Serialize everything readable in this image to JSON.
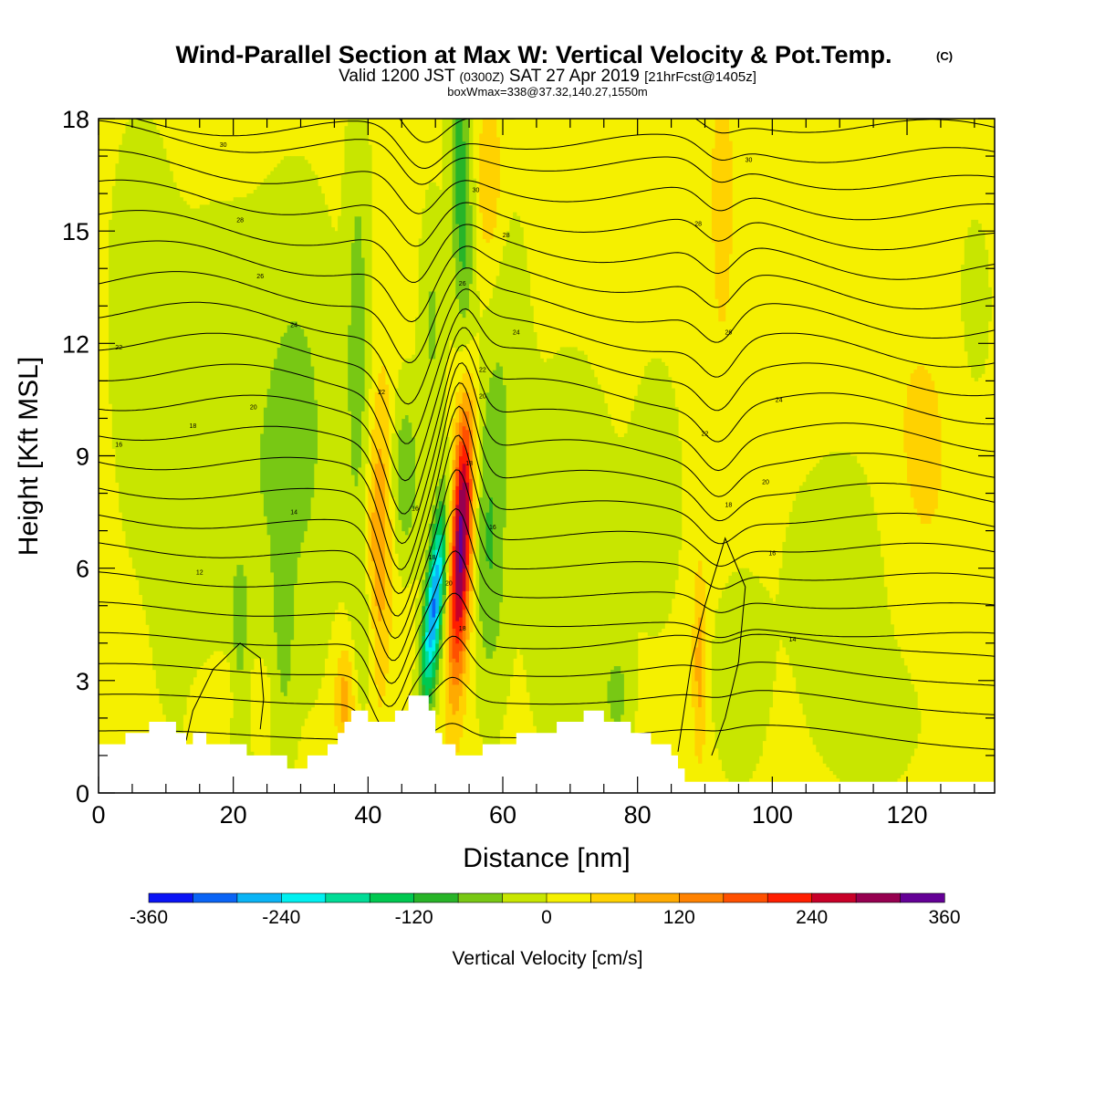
{
  "chart_data": {
    "type": "heatmap",
    "title": "Wind-Parallel Section at Max W: Vertical Velocity & Pot.Temp.",
    "title_mark": "(C)",
    "subtitle_a": "Valid 1200 JST",
    "subtitle_b": "(0300Z)",
    "subtitle_c": "SAT 27 Apr 2019",
    "subtitle_d": "[21hrFcst@1405z]",
    "subtitle2": "boxWmax=338@37.32,140.27,1550m",
    "xlabel": "Distance [nm]",
    "ylabel": "Height [Kft MSL]",
    "xlim": [
      0,
      133
    ],
    "ylim": [
      0,
      18
    ],
    "xticks": [
      {
        "value": 0,
        "label": "0"
      },
      {
        "value": 20,
        "label": "20"
      },
      {
        "value": 40,
        "label": "40"
      },
      {
        "value": 60,
        "label": "60"
      },
      {
        "value": 80,
        "label": "80"
      },
      {
        "value": 100,
        "label": "100"
      },
      {
        "value": 120,
        "label": "120"
      }
    ],
    "yticks": [
      {
        "value": 0,
        "label": "0"
      },
      {
        "value": 3,
        "label": "3"
      },
      {
        "value": 6,
        "label": "6"
      },
      {
        "value": 9,
        "label": "9"
      },
      {
        "value": 12,
        "label": "12"
      },
      {
        "value": 15,
        "label": "15"
      },
      {
        "value": 18,
        "label": "18"
      }
    ],
    "colorbar": {
      "title": "Vertical Velocity [cm/s]",
      "min": -360,
      "max": 360,
      "colors": [
        "#0a14f5",
        "#0a64f5",
        "#0ab4f5",
        "#00f0f0",
        "#00dc96",
        "#00c850",
        "#28b428",
        "#78c814",
        "#c8e600",
        "#f5f000",
        "#ffd200",
        "#ffaa00",
        "#ff8200",
        "#ff5000",
        "#ff1e00",
        "#c80028",
        "#960050",
        "#640096"
      ],
      "ticks": [
        {
          "value": -360,
          "label": "-360"
        },
        {
          "value": -240,
          "label": "-240"
        },
        {
          "value": -120,
          "label": "-120"
        },
        {
          "value": 0,
          "label": "0"
        },
        {
          "value": 120,
          "label": "120"
        },
        {
          "value": 240,
          "label": "240"
        },
        {
          "value": 360,
          "label": "360"
        }
      ]
    },
    "terrain": [
      [
        0,
        1.3
      ],
      [
        4,
        1.3
      ],
      [
        4,
        1.6
      ],
      [
        7.5,
        1.6
      ],
      [
        7.5,
        1.9
      ],
      [
        11.5,
        1.9
      ],
      [
        11.5,
        1.6
      ],
      [
        13,
        1.6
      ],
      [
        13,
        1.3
      ],
      [
        14,
        1.3
      ],
      [
        14,
        1.6
      ],
      [
        16,
        1.6
      ],
      [
        16,
        1.3
      ],
      [
        22,
        1.3
      ],
      [
        22,
        1.0
      ],
      [
        28,
        1.0
      ],
      [
        28,
        0.65
      ],
      [
        31,
        0.65
      ],
      [
        31,
        1.0
      ],
      [
        34,
        1.0
      ],
      [
        34,
        1.3
      ],
      [
        35.5,
        1.3
      ],
      [
        35.5,
        1.6
      ],
      [
        36.5,
        1.6
      ],
      [
        36.5,
        1.9
      ],
      [
        37.5,
        1.9
      ],
      [
        37.5,
        2.2
      ],
      [
        40,
        2.2
      ],
      [
        40,
        1.9
      ],
      [
        44,
        1.9
      ],
      [
        44,
        2.2
      ],
      [
        46,
        2.2
      ],
      [
        46,
        2.6
      ],
      [
        49,
        2.6
      ],
      [
        49,
        2.2
      ],
      [
        50,
        2.2
      ],
      [
        50,
        1.6
      ],
      [
        51,
        1.6
      ],
      [
        51,
        1.3
      ],
      [
        53,
        1.3
      ],
      [
        53,
        1.0
      ],
      [
        57,
        1.0
      ],
      [
        57,
        1.3
      ],
      [
        62,
        1.3
      ],
      [
        62,
        1.6
      ],
      [
        68,
        1.6
      ],
      [
        68,
        1.9
      ],
      [
        72,
        1.9
      ],
      [
        72,
        2.2
      ],
      [
        75,
        2.2
      ],
      [
        75,
        1.9
      ],
      [
        79,
        1.9
      ],
      [
        79,
        1.6
      ],
      [
        82,
        1.6
      ],
      [
        82,
        1.3
      ],
      [
        85,
        1.3
      ],
      [
        85,
        1.0
      ],
      [
        86,
        1.0
      ],
      [
        86,
        0.65
      ],
      [
        87,
        0.65
      ],
      [
        87,
        0.3
      ],
      [
        133,
        0.3
      ],
      [
        133,
        0
      ],
      [
        0,
        0
      ]
    ],
    "theta_labels": [
      {
        "x": 18.5,
        "y": 17.3,
        "text": "30"
      },
      {
        "x": 21,
        "y": 15.3,
        "text": "28"
      },
      {
        "x": 24,
        "y": 13.8,
        "text": "26"
      },
      {
        "x": 29,
        "y": 12.5,
        "text": "24"
      },
      {
        "x": 3,
        "y": 11.9,
        "text": "22"
      },
      {
        "x": 23,
        "y": 10.3,
        "text": "20"
      },
      {
        "x": 14,
        "y": 9.8,
        "text": "18"
      },
      {
        "x": 3,
        "y": 9.3,
        "text": "16"
      },
      {
        "x": 29,
        "y": 7.5,
        "text": "14"
      },
      {
        "x": 15,
        "y": 5.9,
        "text": "12"
      },
      {
        "x": 42,
        "y": 10.7,
        "text": "22"
      },
      {
        "x": 56,
        "y": 16.1,
        "text": "30"
      },
      {
        "x": 60.5,
        "y": 14.9,
        "text": "28"
      },
      {
        "x": 54,
        "y": 13.6,
        "text": "26"
      },
      {
        "x": 62,
        "y": 12.3,
        "text": "24"
      },
      {
        "x": 57,
        "y": 11.3,
        "text": "22"
      },
      {
        "x": 57,
        "y": 10.6,
        "text": "20"
      },
      {
        "x": 55,
        "y": 8.8,
        "text": "18"
      },
      {
        "x": 58.5,
        "y": 7.1,
        "text": "16"
      },
      {
        "x": 47,
        "y": 7.6,
        "text": "16"
      },
      {
        "x": 49.5,
        "y": 6.3,
        "text": "18"
      },
      {
        "x": 52,
        "y": 5.6,
        "text": "20"
      },
      {
        "x": 54,
        "y": 4.4,
        "text": "18"
      },
      {
        "x": 96.5,
        "y": 16.9,
        "text": "30"
      },
      {
        "x": 89,
        "y": 15.2,
        "text": "28"
      },
      {
        "x": 93.5,
        "y": 12.3,
        "text": "26"
      },
      {
        "x": 101,
        "y": 10.5,
        "text": "24"
      },
      {
        "x": 90,
        "y": 9.6,
        "text": "22"
      },
      {
        "x": 99,
        "y": 8.3,
        "text": "20"
      },
      {
        "x": 93.5,
        "y": 7.7,
        "text": "18"
      },
      {
        "x": 100,
        "y": 6.4,
        "text": "16"
      },
      {
        "x": 103,
        "y": 4.1,
        "text": "14"
      }
    ]
  }
}
